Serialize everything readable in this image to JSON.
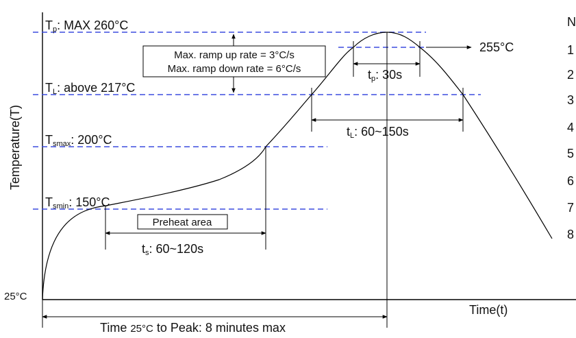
{
  "axes": {
    "y_label": "Temperature(T)",
    "x_label": "Time(t)",
    "origin_temp": "25°C"
  },
  "levels": {
    "tp": {
      "sym": "T",
      "sub": "p",
      "text": ": MAX 260°C"
    },
    "tl": {
      "sym": "T",
      "sub": "L",
      "text": ": above 217°C"
    },
    "tsmax": {
      "sym": "T",
      "sub": "smax",
      "text": ": 200°C"
    },
    "tsmin": {
      "sym": "T",
      "sub": "smin",
      "text": ": 150°C"
    }
  },
  "ramp_box": {
    "line1": "Max. ramp up rate = 3°C/s",
    "line2": "Max. ramp down rate = 6°C/s"
  },
  "peak_marker": "255°C",
  "intervals": {
    "tp": {
      "sym": "t",
      "sub": "p",
      "text": ": 30s"
    },
    "tl": {
      "sym": "t",
      "sub": "L",
      "text": ": 60~150s"
    },
    "ts": {
      "sym": "t",
      "sub": "s",
      "text": ": 60~120s"
    }
  },
  "preheat_label": "Preheat area",
  "time_to_peak": {
    "prefix": "Time ",
    "temp": "25°C",
    "suffix": " to Peak: 8 minutes max"
  },
  "side_fragments": [
    "N",
    "1",
    "2",
    "3",
    "4",
    "5",
    "6",
    "7",
    "8"
  ],
  "colors": {
    "dash": "#3b4bdf",
    "ink": "#000000"
  }
}
